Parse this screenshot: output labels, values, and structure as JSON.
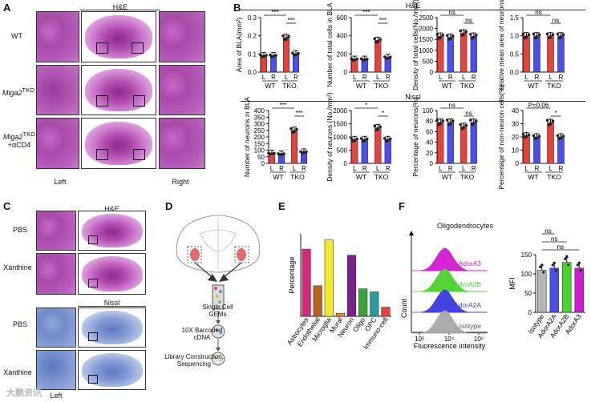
{
  "panels": {
    "a": "A",
    "b": "B",
    "c": "C",
    "d": "D",
    "e": "E",
    "f": "F"
  },
  "panel_a": {
    "title": "H&E",
    "rows": [
      "WT",
      "Miga2TKO",
      "Miga2TKO +αCD4"
    ],
    "row_labels": {
      "wt": "WT",
      "tko_italic": "Miga2",
      "tko_sup": "TKO",
      "cd4": "+αCD4"
    },
    "bottom_left": "Left",
    "bottom_right": "Right"
  },
  "panel_b": {
    "he_header": "H&E",
    "nissl_header": "Nissl",
    "x_sub": [
      "L",
      "R",
      "L",
      "R"
    ],
    "x_groups": [
      "WT",
      "TKO"
    ],
    "sig": {
      "s3": "***",
      "s1": "*",
      "ns": "ns",
      "p": "P=0.06"
    }
  },
  "chart_data": [
    {
      "type": "bar",
      "id": "b1",
      "ylabel": "Area of BLA(mm²)",
      "ylim": [
        0,
        0.3
      ],
      "yticks": [
        "0.0",
        "0.1",
        "0.2",
        "0.3"
      ],
      "categories": [
        "WT-L",
        "WT-R",
        "TKO-L",
        "TKO-R"
      ],
      "values": [
        0.09,
        0.09,
        0.19,
        0.1
      ],
      "colors": [
        "#e8413c",
        "#4a4ef0",
        "#e8413c",
        "#4a4ef0"
      ]
    },
    {
      "type": "bar",
      "id": "b2",
      "ylabel": "Number of total cells in BLA",
      "ylim": [
        0,
        600
      ],
      "yticks": [
        "0",
        "200",
        "400",
        "600"
      ],
      "categories": [
        "WT-L",
        "WT-R",
        "TKO-L",
        "TKO-R"
      ],
      "values": [
        140,
        140,
        350,
        160
      ],
      "colors": [
        "#e8413c",
        "#4a4ef0",
        "#e8413c",
        "#4a4ef0"
      ]
    },
    {
      "type": "bar",
      "id": "b3",
      "ylabel": "Density of total cells(No./mm²)",
      "ylim": [
        0,
        2500
      ],
      "yticks": [
        "0",
        "500",
        "1000",
        "1500",
        "2000",
        "2500"
      ],
      "categories": [
        "WT-L",
        "WT-R",
        "TKO-L",
        "TKO-R"
      ],
      "values": [
        1650,
        1600,
        1800,
        1650
      ],
      "colors": [
        "#e8413c",
        "#4a4ef0",
        "#e8413c",
        "#4a4ef0"
      ]
    },
    {
      "type": "bar",
      "id": "b4",
      "ylabel": "relative mean area of neurons",
      "ylim": [
        0,
        1.5
      ],
      "yticks": [
        "0.0",
        "0.5",
        "1.0",
        "1.5"
      ],
      "categories": [
        "WT-L",
        "WT-R",
        "TKO-L",
        "TKO-R"
      ],
      "values": [
        1.0,
        1.0,
        1.0,
        1.0
      ],
      "colors": [
        "#e8413c",
        "#4a4ef0",
        "#e8413c",
        "#4a4ef0"
      ]
    },
    {
      "type": "bar",
      "id": "b5",
      "ylabel": "Number of neurons in BLA",
      "ylim": [
        0,
        400
      ],
      "yticks": [
        "0",
        "50",
        "100",
        "150",
        "200",
        "250",
        "300",
        "350",
        "400"
      ],
      "categories": [
        "WT-L",
        "WT-R",
        "TKO-L",
        "TKO-R"
      ],
      "values": [
        75,
        70,
        250,
        85
      ],
      "colors": [
        "#e8413c",
        "#4a4ef0",
        "#e8413c",
        "#4a4ef0"
      ]
    },
    {
      "type": "bar",
      "id": "b6",
      "ylabel": "Density of neurons (No./mm²)",
      "ylim": [
        0,
        2000
      ],
      "yticks": [
        "0",
        "500",
        "1000",
        "1500",
        "2000"
      ],
      "categories": [
        "WT-L",
        "WT-R",
        "TKO-L",
        "TKO-R"
      ],
      "values": [
        900,
        900,
        1350,
        900
      ],
      "colors": [
        "#e8413c",
        "#4a4ef0",
        "#e8413c",
        "#4a4ef0"
      ]
    },
    {
      "type": "bar",
      "id": "b7",
      "ylabel": "Percentage of neurons(%)",
      "ylim": [
        0,
        100
      ],
      "yticks": [
        "0",
        "20",
        "40",
        "60",
        "80",
        "100"
      ],
      "categories": [
        "WT-L",
        "WT-R",
        "TKO-L",
        "TKO-R"
      ],
      "values": [
        78,
        78,
        70,
        78
      ],
      "colors": [
        "#e8413c",
        "#4a4ef0",
        "#e8413c",
        "#4a4ef0"
      ]
    },
    {
      "type": "bar",
      "id": "b8",
      "ylabel": "Percentage of non-neuron cells(%)",
      "ylim": [
        0,
        40
      ],
      "yticks": [
        "0",
        "10",
        "20",
        "30",
        "40"
      ],
      "categories": [
        "WT-L",
        "WT-R",
        "TKO-L",
        "TKO-R"
      ],
      "values": [
        21,
        20,
        31,
        20
      ],
      "colors": [
        "#e8413c",
        "#4a4ef0",
        "#e8413c",
        "#4a4ef0"
      ]
    },
    {
      "type": "bar",
      "id": "e",
      "ylabel": "Percentage",
      "categories": [
        "Astrocytes",
        "Endothelial",
        "Microglia",
        "Mural",
        "Neuron",
        "Oligo",
        "OPC",
        "Immuno-cell"
      ],
      "values": [
        0.22,
        0.1,
        0.25,
        0.01,
        0.2,
        0.09,
        0.08,
        0.03
      ],
      "colors": [
        "#d6287a",
        "#b8651b",
        "#f2ea2a",
        "#f08a1e",
        "#7a1f8c",
        "#3aa43a",
        "#2a9c9c",
        "#e8413c"
      ]
    },
    {
      "type": "histogram-overlay",
      "id": "f-flow",
      "title": "Oligodendrocytes",
      "xlabel": "Fluorescence intensity",
      "ylabel": "Count",
      "xticks": [
        "10²",
        "10⁴",
        "10⁶"
      ],
      "series": [
        {
          "name": "AdorA3",
          "color": "#d21ad2"
        },
        {
          "name": "AdorA2B",
          "color": "#4ad42a"
        },
        {
          "name": "AdorA2A",
          "color": "#3a3ae0"
        },
        {
          "name": "Isotype",
          "color": "#a8a8a8"
        }
      ]
    },
    {
      "type": "bar",
      "id": "f-mfi",
      "ylabel": "MFI",
      "ylim": [
        0,
        150
      ],
      "yticks": [
        "0",
        "50",
        "100",
        "150"
      ],
      "categories": [
        "Isotype",
        "AdorA2A",
        "AdorA2B",
        "AdorA3"
      ],
      "values": [
        110,
        115,
        130,
        115
      ],
      "colors": [
        "#b5b5b5",
        "#4a4ef0",
        "#4ad42a",
        "#d21ad2"
      ],
      "sig": [
        "ns",
        "ns",
        "ns"
      ]
    }
  ],
  "panel_c": {
    "he_title": "H&E",
    "nissl_title": "Nissl",
    "rows": [
      "PBS",
      "Xanthine",
      "PBS",
      "Xanthine"
    ],
    "bottom_left": "Left"
  },
  "panel_d": {
    "steps": [
      "Single Cell GEMs",
      "10X Barcoded cDNA",
      "Library Construction, Sequencing"
    ],
    "step_lines": [
      "Single Cell",
      "GEMs",
      "10X Barcoded",
      "cDNA",
      "Library Construction,",
      "Sequencing"
    ]
  },
  "watermark": "大鹏资讯"
}
